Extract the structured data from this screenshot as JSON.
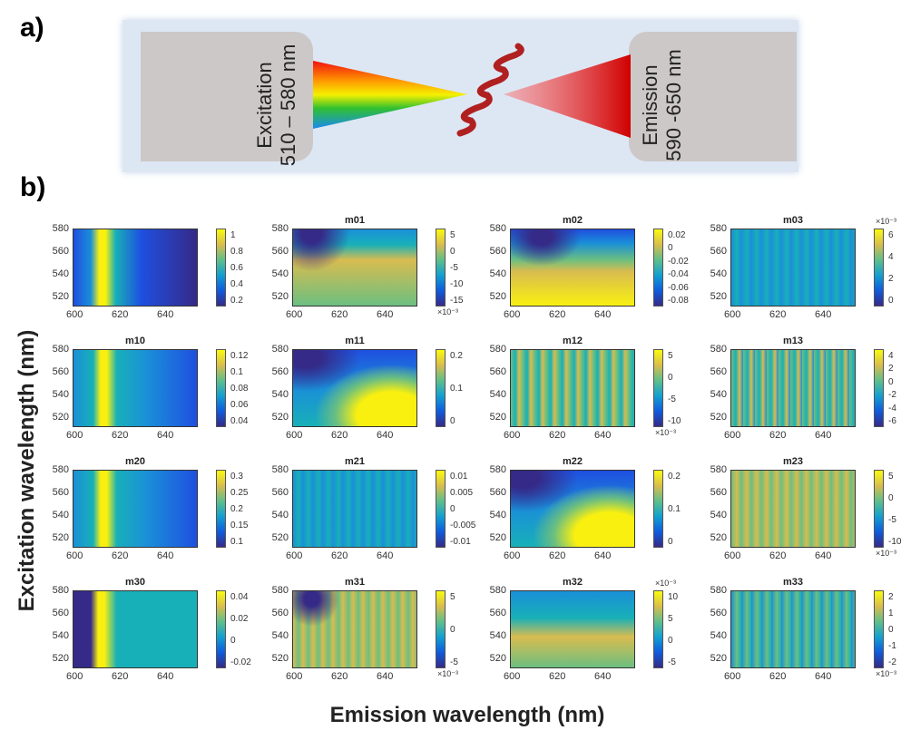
{
  "panel_a": {
    "label": "a)",
    "excitation": {
      "name": "Excitation",
      "range": "510 – 580 nm"
    },
    "emission": {
      "name": "Emission",
      "range": "590 -650 nm"
    }
  },
  "panel_b": {
    "label": "b)",
    "y_axis_label": "Excitation wavelength (nm)",
    "x_axis_label": "Emission wavelength (nm)",
    "x_ticks": [
      "600",
      "620",
      "640"
    ],
    "y_ticks": [
      "580",
      "560",
      "540",
      "520"
    ],
    "maps": [
      {
        "colorbar_ticks": [
          "1",
          "0.8",
          "0.6",
          "0.4",
          "0.2"
        ]
      },
      {
        "title": "m01",
        "colorbar_ticks": [
          "5",
          "0",
          "-5",
          "-10",
          "-15"
        ],
        "exponent": "×10⁻³"
      },
      {
        "title": "m02",
        "colorbar_ticks": [
          "0.02",
          "0",
          "-0.02",
          "-0.04",
          "-0.06",
          "-0.08"
        ]
      },
      {
        "title": "m03",
        "colorbar_ticks": [
          "6",
          "4",
          "2",
          "0"
        ],
        "exponent": "×10⁻³"
      },
      {
        "title": "m10",
        "colorbar_ticks": [
          "0.12",
          "0.1",
          "0.08",
          "0.06",
          "0.04"
        ]
      },
      {
        "title": "m11",
        "colorbar_ticks": [
          "0.2",
          "0.1",
          "0"
        ]
      },
      {
        "title": "m12",
        "colorbar_ticks": [
          "5",
          "0",
          "-5",
          "-10"
        ],
        "exponent": "×10⁻³"
      },
      {
        "title": "m13",
        "colorbar_ticks": [
          "4",
          "2",
          "0",
          "-2",
          "-4",
          "-6"
        ]
      },
      {
        "title": "m20",
        "colorbar_ticks": [
          "0.3",
          "0.25",
          "0.2",
          "0.15",
          "0.1"
        ]
      },
      {
        "title": "m21",
        "colorbar_ticks": [
          "0.01",
          "0.005",
          "0",
          "-0.005",
          "-0.01"
        ]
      },
      {
        "title": "m22",
        "colorbar_ticks": [
          "0.2",
          "0.1",
          "0"
        ]
      },
      {
        "title": "m23",
        "colorbar_ticks": [
          "5",
          "0",
          "-5",
          "-10"
        ],
        "exponent": "×10⁻³"
      },
      {
        "title": "m30",
        "colorbar_ticks": [
          "0.04",
          "0.02",
          "0",
          "-0.02"
        ]
      },
      {
        "title": "m31",
        "colorbar_ticks": [
          "5",
          "0",
          "-5"
        ],
        "exponent": "×10⁻³"
      },
      {
        "title": "m32",
        "colorbar_ticks": [
          "10",
          "5",
          "0",
          "-5"
        ],
        "exponent": "×10⁻³"
      },
      {
        "title": "m33",
        "colorbar_ticks": [
          "2",
          "1",
          "0",
          "-1",
          "-2"
        ],
        "exponent": "×10⁻³"
      }
    ]
  }
}
